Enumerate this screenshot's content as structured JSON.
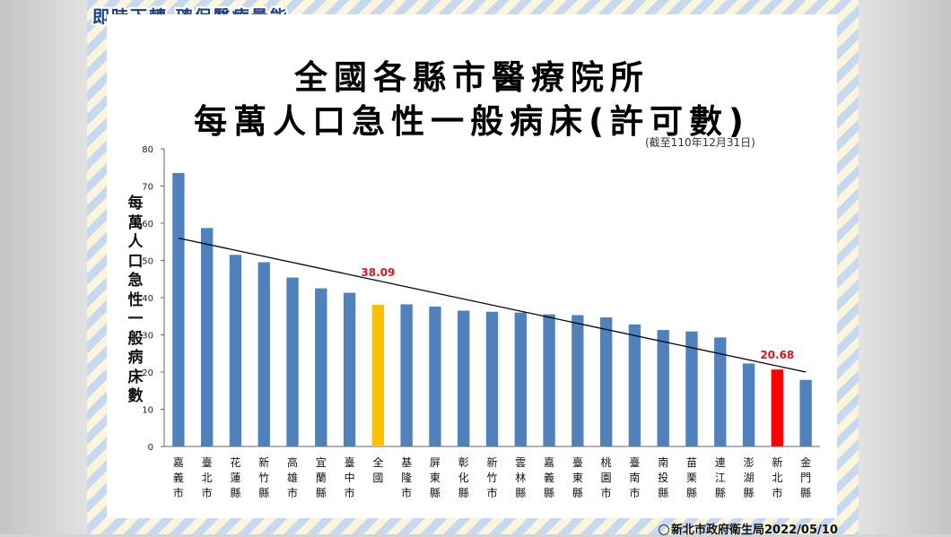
{
  "banner": "即時下轉 確保醫療量能",
  "title_line1": "全國各縣市醫療院所",
  "title_line2": "每萬人口急性一般病床(許可數)",
  "note": "(截至110年12月31日)",
  "footer": "新北市政府衛生局2022/05/10",
  "colors": {
    "bar": "#4f81bd",
    "national": "#ffc000",
    "highlight": "#ff0000",
    "label": "#e0141e",
    "trend": "#000000"
  },
  "chart_data": {
    "type": "bar",
    "ylabel": "每萬人口急性一般病床數",
    "ylim": [
      0,
      80
    ],
    "yticks": [
      0,
      10,
      20,
      30,
      40,
      50,
      60,
      70,
      80
    ],
    "grid": false,
    "categories": [
      "嘉義市",
      "臺北市",
      "花蓮縣",
      "新竹縣",
      "高雄市",
      "宜蘭縣",
      "臺中市",
      "全國",
      "基隆市",
      "屏東縣",
      "彰化縣",
      "新竹市",
      "雲林縣",
      "嘉義縣",
      "臺東縣",
      "桃園市",
      "臺南市",
      "南投縣",
      "苗栗縣",
      "連江縣",
      "澎湖縣",
      "新北市",
      "金門縣"
    ],
    "values": [
      73.5,
      58.7,
      51.5,
      49.5,
      45.4,
      42.5,
      41.3,
      38.09,
      38.2,
      37.6,
      36.5,
      36.2,
      36.0,
      35.5,
      35.3,
      34.7,
      32.8,
      31.3,
      30.9,
      29.3,
      22.3,
      20.68,
      17.9
    ],
    "highlight": {
      "national_index": 7,
      "target_index": 21
    },
    "data_labels": [
      {
        "index": 7,
        "text": "38.09"
      },
      {
        "index": 21,
        "text": "20.68"
      }
    ],
    "trendline": {
      "start": 56,
      "end": 20
    }
  }
}
